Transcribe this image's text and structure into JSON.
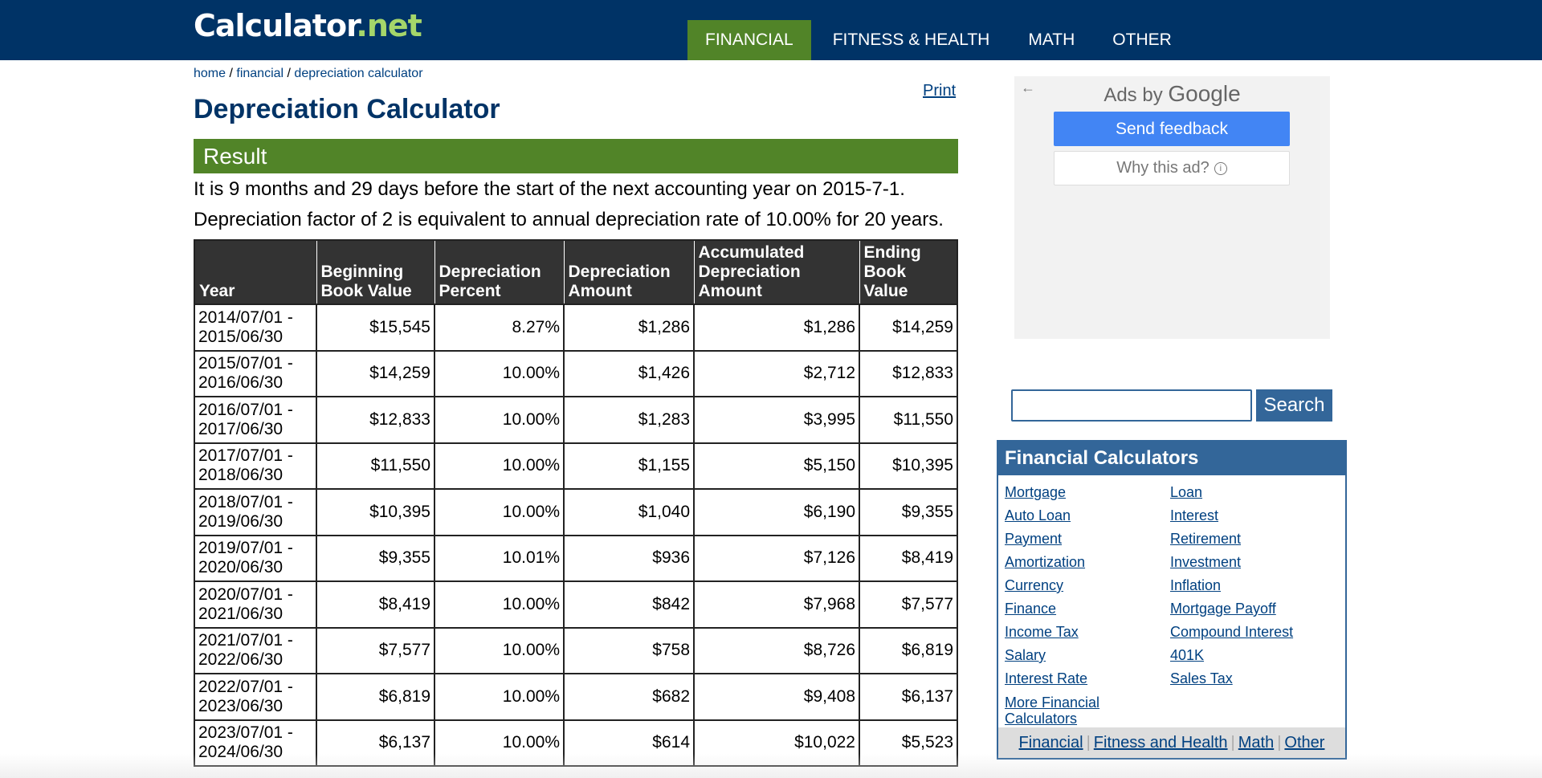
{
  "logo": {
    "main": "Calculator",
    "tld": ".net"
  },
  "topnav": [
    "FINANCIAL",
    "FITNESS & HEALTH",
    "MATH",
    "OTHER"
  ],
  "breadcrumb": {
    "home": "home",
    "sep": " / ",
    "financial": "financial",
    "current": "depreciation calculator"
  },
  "page": {
    "title": "Depreciation Calculator",
    "print": "Print"
  },
  "result": {
    "heading": "Result",
    "line1": "It is 9 months and 29 days before the start of the next accounting year on 2015-7-1.",
    "line2": "Depreciation factor of 2 is equivalent to annual depreciation rate of 10.00% for 20 years."
  },
  "table": {
    "headers": [
      [
        "Year"
      ],
      [
        "Beginning",
        "Book Value"
      ],
      [
        "Depreciation",
        "Percent"
      ],
      [
        "Depreciation",
        "Amount"
      ],
      [
        "Accumulated",
        "Depreciation",
        "Amount"
      ],
      [
        "Ending",
        "Book",
        "Value"
      ]
    ],
    "rows": [
      [
        "2014/07/01 -",
        "2015/06/30",
        "$15,545",
        "8.27%",
        "$1,286",
        "$1,286",
        "$14,259"
      ],
      [
        "2015/07/01 -",
        "2016/06/30",
        "$14,259",
        "10.00%",
        "$1,426",
        "$2,712",
        "$12,833"
      ],
      [
        "2016/07/01 -",
        "2017/06/30",
        "$12,833",
        "10.00%",
        "$1,283",
        "$3,995",
        "$11,550"
      ],
      [
        "2017/07/01 -",
        "2018/06/30",
        "$11,550",
        "10.00%",
        "$1,155",
        "$5,150",
        "$10,395"
      ],
      [
        "2018/07/01 -",
        "2019/06/30",
        "$10,395",
        "10.00%",
        "$1,040",
        "$6,190",
        "$9,355"
      ],
      [
        "2019/07/01 -",
        "2020/06/30",
        "$9,355",
        "10.01%",
        "$936",
        "$7,126",
        "$8,419"
      ],
      [
        "2020/07/01 -",
        "2021/06/30",
        "$8,419",
        "10.00%",
        "$842",
        "$7,968",
        "$7,577"
      ],
      [
        "2021/07/01 -",
        "2022/06/30",
        "$7,577",
        "10.00%",
        "$758",
        "$8,726",
        "$6,819"
      ],
      [
        "2022/07/01 -",
        "2023/06/30",
        "$6,819",
        "10.00%",
        "$682",
        "$9,408",
        "$6,137"
      ],
      [
        "2023/07/01 -",
        "2024/06/30",
        "$6,137",
        "10.00%",
        "$614",
        "$10,022",
        "$5,523"
      ]
    ]
  },
  "ad": {
    "ads_by": "Ads by ",
    "google": "Google",
    "send_feedback": "Send feedback",
    "why": "Why this ad?",
    "back_glyph": "←",
    "info_glyph": "i"
  },
  "search": {
    "button": "Search",
    "placeholder": ""
  },
  "financial_calculators": {
    "title": "Financial Calculators",
    "left": [
      "Mortgage",
      "Auto Loan",
      "Payment",
      "Amortization",
      "Currency",
      "Finance",
      "Income Tax",
      "Salary",
      "Interest Rate"
    ],
    "more": [
      "More Financial",
      "Calculators"
    ],
    "right": [
      "Loan",
      "Interest",
      "Retirement",
      "Investment",
      "Inflation",
      "Mortgage Payoff",
      "Compound Interest",
      "401K",
      "Sales Tax"
    ],
    "footer": [
      "Financial",
      "Fitness and Health",
      "Math",
      "Other"
    ],
    "footer_sep": "|"
  },
  "colors": {
    "navy": "#003366",
    "green": "#518428",
    "link": "#004080",
    "steel": "#336699",
    "google_blue": "#4285f4"
  }
}
